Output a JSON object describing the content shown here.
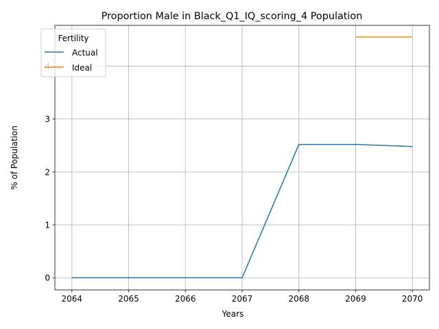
{
  "chart_data": {
    "type": "line",
    "title": "Proportion Male in Black_Q1_IQ_scoring_4 Population",
    "xlabel": "Years",
    "ylabel": "% of Population",
    "x": [
      2064,
      2065,
      2066,
      2067,
      2068,
      2069,
      2070
    ],
    "x_ticks": [
      "2064",
      "2065",
      "2066",
      "2067",
      "2068",
      "2069",
      "2070"
    ],
    "y_ticks": [
      "0",
      "1",
      "2",
      "3",
      "4"
    ],
    "xlim": [
      2063.7,
      2070.3
    ],
    "ylim": [
      -0.23,
      4.77
    ],
    "grid": true,
    "legend": {
      "title": "Fertility",
      "placement": "upper-left"
    },
    "series": [
      {
        "name": "Actual",
        "color": "#1f77b4",
        "x": [
          2064,
          2065,
          2066,
          2067,
          2068,
          2069,
          2070
        ],
        "values": [
          0,
          0,
          0,
          0,
          2.52,
          2.52,
          2.48
        ]
      },
      {
        "name": "Ideal",
        "color": "#ff7f0e",
        "x": [
          2069,
          2070
        ],
        "values": [
          4.55,
          4.55
        ]
      }
    ]
  }
}
